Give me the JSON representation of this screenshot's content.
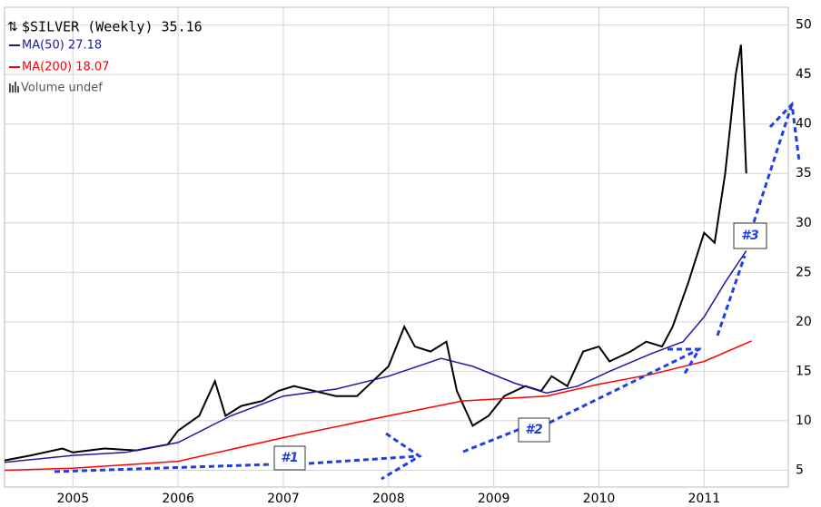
{
  "chart_data": {
    "type": "line",
    "title": "$SILVER (Weekly) 35.16",
    "legend_extra": "Volume undef",
    "xlim": [
      2004.35,
      2011.8
    ],
    "xticks": [
      2005,
      2006,
      2007,
      2008,
      2009,
      2010,
      2011
    ],
    "ylim": [
      3.3,
      51.8
    ],
    "yticks": [
      5,
      10,
      15,
      20,
      25,
      30,
      35,
      40,
      45,
      50
    ],
    "grid": true,
    "annotations": [
      "#1",
      "#2",
      "#3"
    ],
    "series": [
      {
        "name": "$SILVER",
        "color": "#000000",
        "x": [
          2004.35,
          2004.6,
          2004.9,
          2005.0,
          2005.3,
          2005.6,
          2005.9,
          2006.0,
          2006.2,
          2006.35,
          2006.45,
          2006.6,
          2006.8,
          2006.95,
          2007.1,
          2007.3,
          2007.5,
          2007.7,
          2007.85,
          2008.0,
          2008.15,
          2008.25,
          2008.4,
          2008.55,
          2008.65,
          2008.8,
          2008.95,
          2009.1,
          2009.3,
          2009.45,
          2009.55,
          2009.7,
          2009.85,
          2010.0,
          2010.1,
          2010.3,
          2010.45,
          2010.6,
          2010.7,
          2010.85,
          2011.0,
          2011.1,
          2011.2,
          2011.3,
          2011.35,
          2011.4
        ],
        "values": [
          6.0,
          6.5,
          7.2,
          6.8,
          7.2,
          7.0,
          7.6,
          9.0,
          10.5,
          14.0,
          10.5,
          11.5,
          12.0,
          13.0,
          13.5,
          13.0,
          12.5,
          12.5,
          14.0,
          15.5,
          19.5,
          17.5,
          17.0,
          18.0,
          13.0,
          9.5,
          10.5,
          12.5,
          13.5,
          13.0,
          14.5,
          13.5,
          17.0,
          17.5,
          16.0,
          17.0,
          18.0,
          17.5,
          19.5,
          24.0,
          29.0,
          28.0,
          35.0,
          45.0,
          48.0,
          35.0
        ]
      },
      {
        "name": "MA(50) 27.18",
        "color": "#1a1aa0",
        "x": [
          2004.35,
          2005.0,
          2005.5,
          2006.0,
          2006.5,
          2007.0,
          2007.5,
          2008.0,
          2008.5,
          2008.8,
          2009.2,
          2009.5,
          2009.8,
          2010.1,
          2010.5,
          2010.8,
          2011.0,
          2011.2,
          2011.4
        ],
        "values": [
          5.8,
          6.5,
          6.8,
          7.8,
          10.5,
          12.5,
          13.2,
          14.5,
          16.3,
          15.5,
          13.8,
          12.8,
          13.5,
          15.0,
          16.8,
          18.0,
          20.5,
          24.0,
          27.18
        ]
      },
      {
        "name": "MA(200) 18.07",
        "color": "#ff0000",
        "x": [
          2004.35,
          2005.0,
          2006.0,
          2007.0,
          2008.0,
          2008.7,
          2009.5,
          2010.0,
          2010.5,
          2011.0,
          2011.45
        ],
        "values": [
          5.0,
          5.2,
          5.9,
          8.3,
          10.5,
          12.0,
          12.5,
          13.7,
          14.7,
          16.0,
          18.07
        ]
      }
    ]
  }
}
